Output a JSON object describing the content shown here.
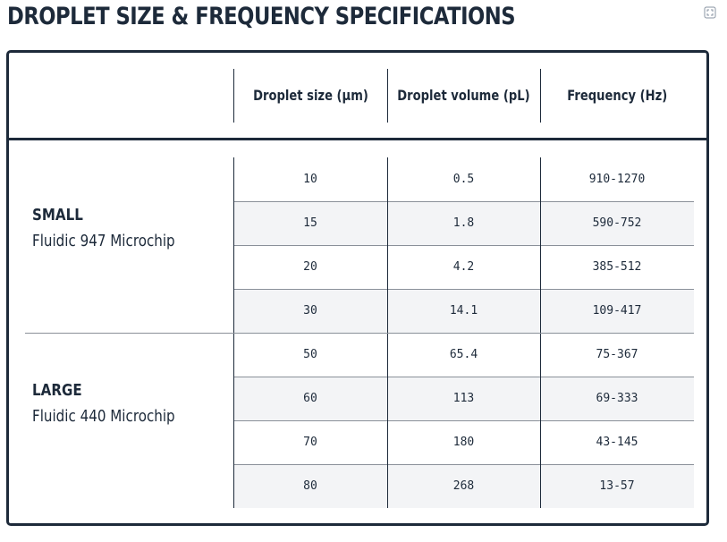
{
  "title": "DROPLET SIZE & FREQUENCY SPECIFICATIONS",
  "expand_icon": "expand-icon",
  "columns": [
    "Droplet size (µm)",
    "Droplet volume (pL)",
    "Frequency (Hz)"
  ],
  "groups": [
    {
      "name": "SMALL",
      "chip": "Fluidic 947 Microchip",
      "rows": [
        {
          "size": "10",
          "volume": "0.5",
          "frequency": "910-1270"
        },
        {
          "size": "15",
          "volume": "1.8",
          "frequency": "590-752"
        },
        {
          "size": "20",
          "volume": "4.2",
          "frequency": "385-512"
        },
        {
          "size": "30",
          "volume": "14.1",
          "frequency": "109-417"
        }
      ]
    },
    {
      "name": "LARGE",
      "chip": "Fluidic 440 Microchip",
      "rows": [
        {
          "size": "50",
          "volume": "65.4",
          "frequency": "75-367"
        },
        {
          "size": "60",
          "volume": "113",
          "frequency": "69-333"
        },
        {
          "size": "70",
          "volume": "180",
          "frequency": "43-145"
        },
        {
          "size": "80",
          "volume": "268",
          "frequency": "13-57"
        }
      ]
    }
  ]
}
